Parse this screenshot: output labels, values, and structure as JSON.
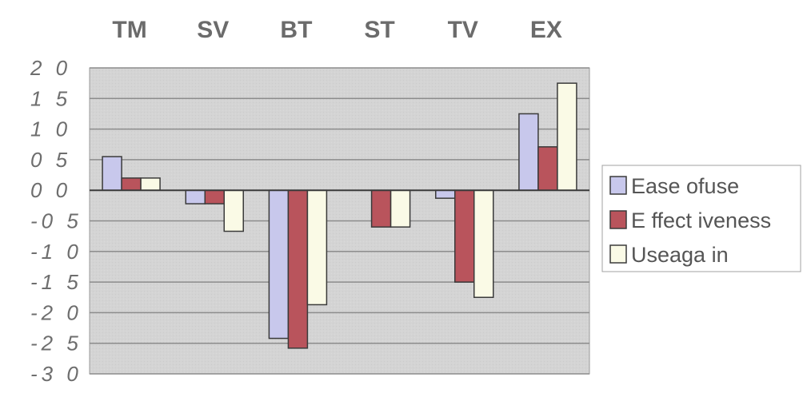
{
  "chart_data": {
    "type": "bar",
    "categories": [
      "TM",
      "SV",
      "BT",
      "ST",
      "TV",
      "EX"
    ],
    "series": [
      {
        "name": "Ease ofuse",
        "values": [
          0.55,
          -0.22,
          -2.42,
          0.0,
          -0.13,
          1.25
        ],
        "color": "#c8c8ec"
      },
      {
        "name": "E ffect iveness",
        "values": [
          0.2,
          -0.22,
          -2.58,
          -0.6,
          -1.5,
          0.71
        ],
        "color": "#b9545c"
      },
      {
        "name": "Useaga in",
        "values": [
          0.2,
          -0.67,
          -1.87,
          -0.6,
          -1.75,
          1.75
        ],
        "color": "#fafae6"
      }
    ],
    "y_tick_labels": [
      "2 0",
      "1 5",
      "1 0",
      "0 5",
      "0 0",
      "-0 5",
      "-1 0",
      "-1 5",
      "-2 0",
      "-2 5",
      "-3 0"
    ],
    "y_tick_values": [
      2.0,
      1.5,
      1.0,
      0.5,
      0.0,
      -0.5,
      -1.0,
      -1.5,
      -2.0,
      -2.5,
      -3.0
    ],
    "ylim": [
      -3.0,
      2.0
    ],
    "grid": true,
    "legend": "right",
    "category_labels_position": "top",
    "colors": {
      "plot_background": "#d4d4d4",
      "gridline": "#8c8c8c",
      "bar_outline": "#3a3a3a",
      "text": "#6b6b6b"
    }
  }
}
